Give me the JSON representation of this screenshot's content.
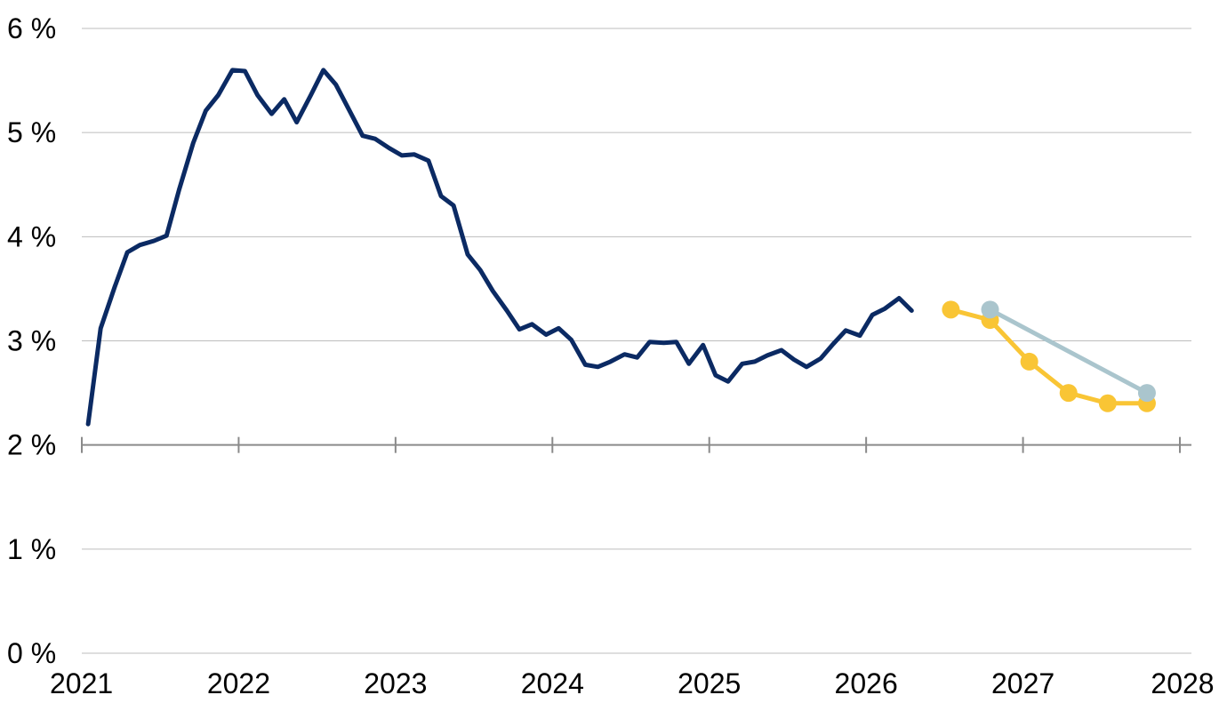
{
  "chart_data": {
    "type": "line",
    "title": "",
    "xlabel": "",
    "ylabel": "",
    "x_ticks": [
      "2021",
      "2022",
      "2023",
      "2024",
      "2025",
      "2026",
      "2027",
      "2028"
    ],
    "y_ticks": [
      "0 %",
      "1 %",
      "2 %",
      "3 %",
      "4 %",
      "5 %",
      "6 %"
    ],
    "xlim": [
      2021,
      2028
    ],
    "ylim": [
      0,
      6
    ],
    "x_axis_at_y": 2,
    "grid": "horizontal",
    "legend": "none",
    "series": [
      {
        "color": "#0b2a63",
        "markers": false,
        "points": [
          [
            2021.04,
            2.2
          ],
          [
            2021.12,
            3.12
          ],
          [
            2021.21,
            3.52
          ],
          [
            2021.29,
            3.85
          ],
          [
            2021.37,
            3.92
          ],
          [
            2021.46,
            3.96
          ],
          [
            2021.54,
            4.01
          ],
          [
            2021.62,
            4.45
          ],
          [
            2021.71,
            4.9
          ],
          [
            2021.79,
            5.21
          ],
          [
            2021.87,
            5.36
          ],
          [
            2021.96,
            5.6
          ],
          [
            2022.04,
            5.59
          ],
          [
            2022.12,
            5.36
          ],
          [
            2022.21,
            5.18
          ],
          [
            2022.29,
            5.32
          ],
          [
            2022.37,
            5.1
          ],
          [
            2022.46,
            5.36
          ],
          [
            2022.54,
            5.6
          ],
          [
            2022.62,
            5.46
          ],
          [
            2022.71,
            5.2
          ],
          [
            2022.79,
            4.97
          ],
          [
            2022.87,
            4.94
          ],
          [
            2022.96,
            4.85
          ],
          [
            2023.04,
            4.78
          ],
          [
            2023.12,
            4.79
          ],
          [
            2023.21,
            4.73
          ],
          [
            2023.29,
            4.39
          ],
          [
            2023.37,
            4.3
          ],
          [
            2023.46,
            3.83
          ],
          [
            2023.54,
            3.68
          ],
          [
            2023.62,
            3.48
          ],
          [
            2023.71,
            3.29
          ],
          [
            2023.79,
            3.11
          ],
          [
            2023.87,
            3.16
          ],
          [
            2023.96,
            3.06
          ],
          [
            2024.04,
            3.12
          ],
          [
            2024.12,
            3.01
          ],
          [
            2024.21,
            2.77
          ],
          [
            2024.29,
            2.75
          ],
          [
            2024.37,
            2.8
          ],
          [
            2024.46,
            2.87
          ],
          [
            2024.54,
            2.84
          ],
          [
            2024.62,
            2.99
          ],
          [
            2024.71,
            2.98
          ],
          [
            2024.79,
            2.99
          ],
          [
            2024.87,
            2.78
          ],
          [
            2024.96,
            2.96
          ],
          [
            2025.04,
            2.67
          ],
          [
            2025.12,
            2.61
          ],
          [
            2025.21,
            2.78
          ],
          [
            2025.29,
            2.8
          ],
          [
            2025.37,
            2.86
          ],
          [
            2025.46,
            2.91
          ],
          [
            2025.54,
            2.82
          ],
          [
            2025.62,
            2.75
          ],
          [
            2025.71,
            2.83
          ],
          [
            2025.79,
            2.97
          ],
          [
            2025.87,
            3.1
          ],
          [
            2025.96,
            3.05
          ],
          [
            2026.04,
            3.25
          ],
          [
            2026.12,
            3.31
          ],
          [
            2026.21,
            3.41
          ],
          [
            2026.29,
            3.29
          ]
        ]
      },
      {
        "color": "#f9c535",
        "markers": true,
        "points": [
          [
            2026.54,
            3.3
          ],
          [
            2026.79,
            3.2
          ],
          [
            2027.04,
            2.8
          ],
          [
            2027.29,
            2.5
          ],
          [
            2027.54,
            2.4
          ],
          [
            2027.79,
            2.4
          ]
        ]
      },
      {
        "color": "#aac5cd",
        "markers": true,
        "points": [
          [
            2026.79,
            3.3
          ],
          [
            2027.79,
            2.5
          ]
        ]
      }
    ]
  }
}
